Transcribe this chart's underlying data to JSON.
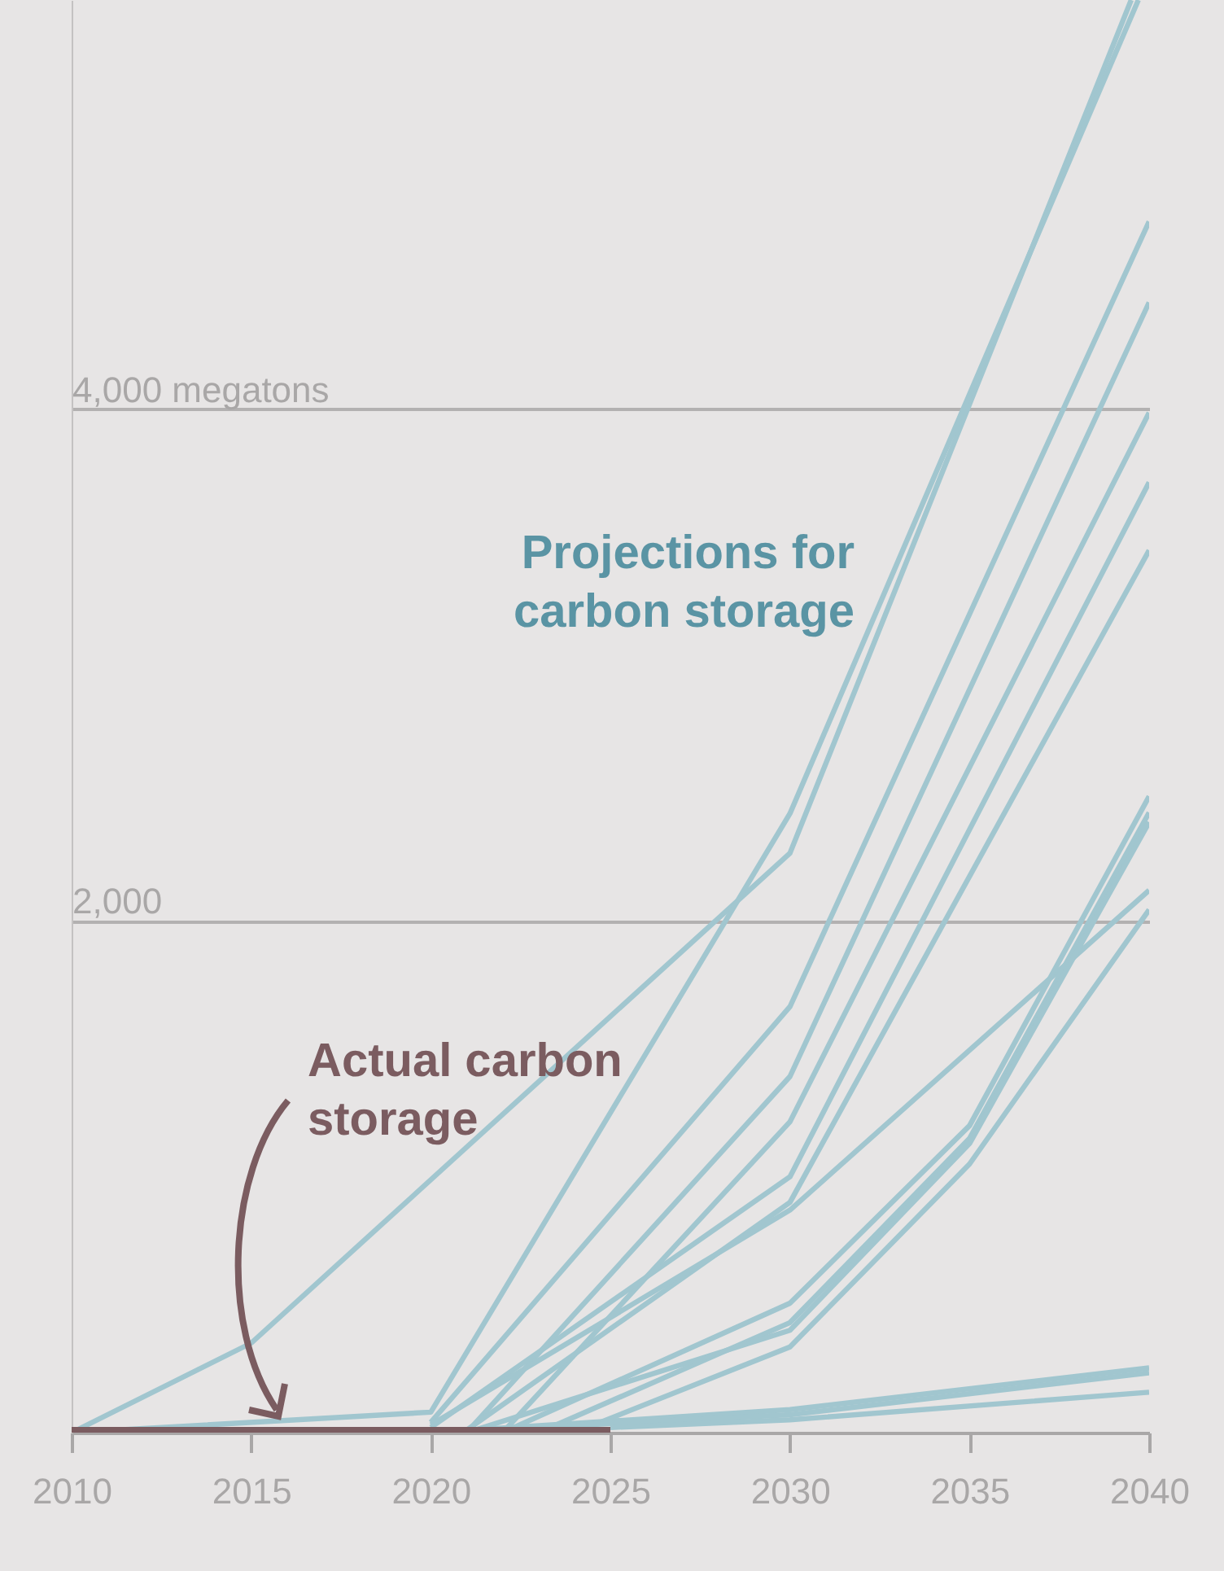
{
  "chart_data": {
    "type": "line",
    "xlim": [
      2010,
      2040
    ],
    "xticks": [
      2010,
      2015,
      2020,
      2025,
      2030,
      2035,
      2040
    ],
    "ylim": [
      0,
      5600
    ],
    "yticks": [
      {
        "value": 2000,
        "label": "2,000"
      },
      {
        "value": 4000,
        "label": "4,000 megatons"
      }
    ],
    "grid": "y",
    "line_style": "solid",
    "marker": "none",
    "annotations": [
      "Projections for carbon storage",
      "Actual carbon storage"
    ],
    "series": [
      {
        "color": "#a1c6cf",
        "x": [
          2010,
          2015,
          2030,
          2039.5
        ],
        "values": [
          0,
          350,
          2265,
          5600
        ]
      },
      {
        "color": "#a1c6cf",
        "x": [
          2010,
          2020,
          2030,
          2039.7
        ],
        "values": [
          0,
          80,
          2420,
          5600
        ]
      },
      {
        "color": "#a1c6cf",
        "x": [
          2020,
          2030,
          2040
        ],
        "values": [
          40,
          1665,
          4734
        ]
      },
      {
        "color": "#a1c6cf",
        "x": [
          2021,
          2030,
          2040
        ],
        "values": [
          0,
          1392,
          4418
        ]
      },
      {
        "color": "#a1c6cf",
        "x": [
          2022,
          2030,
          2040
        ],
        "values": [
          0,
          1215,
          3987
        ]
      },
      {
        "color": "#a1c6cf",
        "x": [
          2020,
          2030,
          2040
        ],
        "values": [
          20,
          1000,
          3715
        ]
      },
      {
        "color": "#a1c6cf",
        "x": [
          2021,
          2030,
          2040
        ],
        "values": [
          10,
          900,
          3449
        ]
      },
      {
        "color": "#a1c6cf",
        "x": [
          2020,
          2030,
          2040
        ],
        "values": [
          30,
          870,
          2120
        ]
      },
      {
        "color": "#a1c6cf",
        "x": [
          2022,
          2030,
          2035,
          2040
        ],
        "values": [
          0,
          506,
          1200,
          2487
        ]
      },
      {
        "color": "#a1c6cf",
        "x": [
          2023,
          2030,
          2035,
          2040
        ],
        "values": [
          0,
          430,
          1150,
          2424
        ]
      },
      {
        "color": "#a1c6cf",
        "x": [
          2021,
          2030,
          2035,
          2040
        ],
        "values": [
          0,
          400,
          1130,
          2386
        ]
      },
      {
        "color": "#a1c6cf",
        "x": [
          2024,
          2030,
          2035,
          2040
        ],
        "values": [
          0,
          335,
          1050,
          2044
        ]
      },
      {
        "color": "#a1c6cf",
        "x": [
          2020,
          2030,
          2040
        ],
        "values": [
          0,
          90,
          253
        ]
      },
      {
        "color": "#a1c6cf",
        "x": [
          2020,
          2030,
          2040
        ],
        "values": [
          0,
          70,
          234
        ]
      },
      {
        "color": "#a1c6cf",
        "x": [
          2025,
          2030,
          2040
        ],
        "values": [
          20,
          50,
          158
        ]
      },
      {
        "color": "#7b5c60",
        "x": [
          2010,
          2025
        ],
        "values": [
          0,
          0
        ]
      }
    ]
  }
}
